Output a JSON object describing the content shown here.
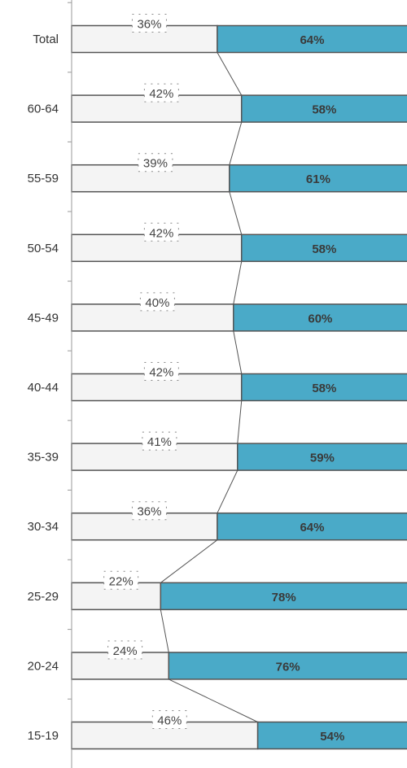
{
  "chart_data": {
    "type": "bar",
    "stacked": true,
    "orientation": "horizontal",
    "percent_stacked": true,
    "categories": [
      "Total",
      "60-64",
      "55-59",
      "50-54",
      "45-49",
      "40-44",
      "35-39",
      "30-34",
      "25-29",
      "20-24",
      "15-19"
    ],
    "series": [
      {
        "values": [
          36,
          42,
          39,
          42,
          40,
          42,
          41,
          36,
          22,
          24,
          46
        ],
        "labels": [
          "36%",
          "42%",
          "39%",
          "42%",
          "40%",
          "42%",
          "41%",
          "36%",
          "22%",
          "24%",
          "46%"
        ],
        "color": "#f4f4f4"
      },
      {
        "values": [
          64,
          58,
          61,
          58,
          60,
          58,
          59,
          64,
          78,
          76,
          54
        ],
        "labels": [
          "64%",
          "58%",
          "61%",
          "58%",
          "60%",
          "58%",
          "59%",
          "64%",
          "78%",
          "76%",
          "54%"
        ],
        "color": "#4aaac8"
      }
    ],
    "xlim": [
      0,
      100
    ],
    "series_lines": true,
    "grid": false,
    "legend": "none",
    "title": "",
    "xlabel": "",
    "ylabel": ""
  }
}
